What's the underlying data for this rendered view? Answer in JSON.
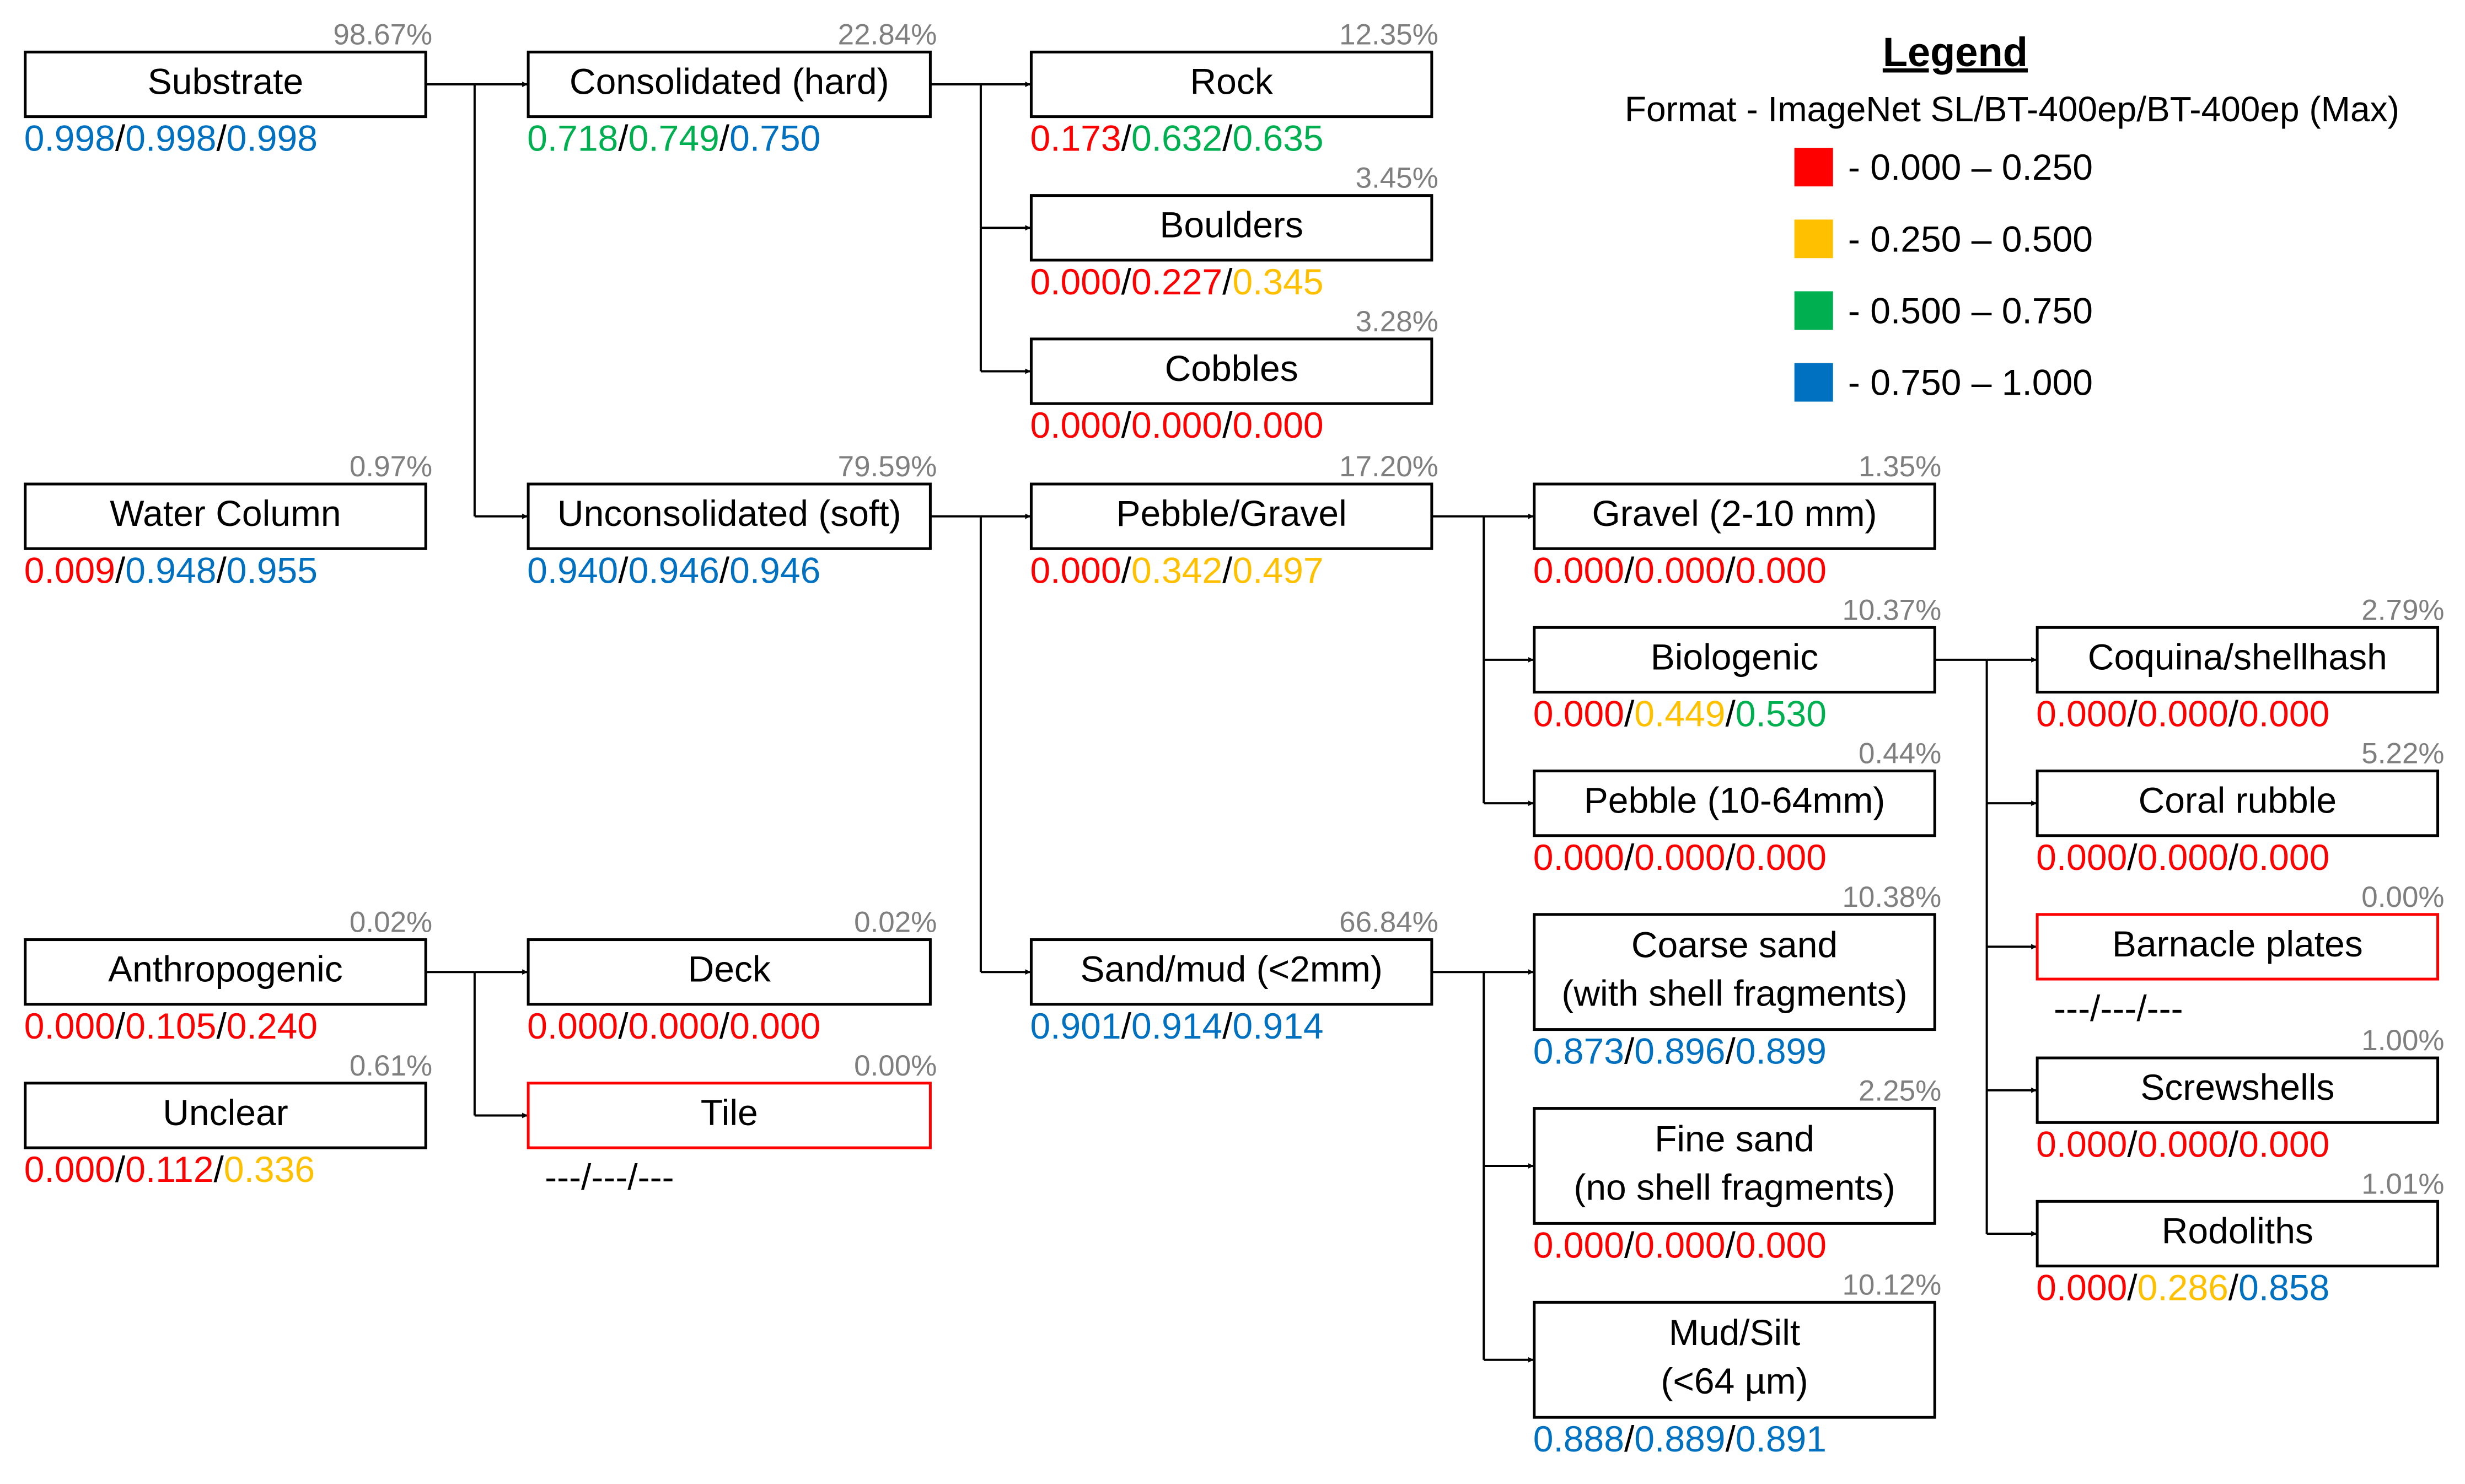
{
  "colors": {
    "red": "#ff0000",
    "yellow": "#ffc000",
    "green": "#00b050",
    "blue": "#0070c0",
    "percent_gray": "#7f7f7f"
  },
  "legend": {
    "title": "Legend",
    "format": "Format - ImageNet SL/BT-400ep/BT-400ep (Max)",
    "ranges": [
      {
        "color": "red",
        "label": "- 0.000 – 0.250"
      },
      {
        "color": "yellow",
        "label": "- 0.250 – 0.500"
      },
      {
        "color": "green",
        "label": "- 0.500 – 0.750"
      },
      {
        "color": "blue",
        "label": "- 0.750 – 1.000"
      }
    ]
  },
  "nodes": [
    {
      "id": "substrate",
      "lines": [
        "Substrate"
      ],
      "percent": "98.67%",
      "scores": [
        {
          "v": "0.998",
          "c": "blue"
        },
        {
          "v": "0.998",
          "c": "blue"
        },
        {
          "v": "0.998",
          "c": "blue"
        }
      ]
    },
    {
      "id": "consolidated",
      "lines": [
        "Consolidated (hard)"
      ],
      "percent": "22.84%",
      "scores": [
        {
          "v": "0.718",
          "c": "green"
        },
        {
          "v": "0.749",
          "c": "green"
        },
        {
          "v": "0.750",
          "c": "blue"
        }
      ]
    },
    {
      "id": "rock",
      "lines": [
        "Rock"
      ],
      "percent": "12.35%",
      "scores": [
        {
          "v": "0.173",
          "c": "red"
        },
        {
          "v": "0.632",
          "c": "green"
        },
        {
          "v": "0.635",
          "c": "green"
        }
      ]
    },
    {
      "id": "boulders",
      "lines": [
        "Boulders"
      ],
      "percent": "3.45%",
      "scores": [
        {
          "v": "0.000",
          "c": "red"
        },
        {
          "v": "0.227",
          "c": "red"
        },
        {
          "v": "0.345",
          "c": "yellow"
        }
      ]
    },
    {
      "id": "cobbles",
      "lines": [
        "Cobbles"
      ],
      "percent": "3.28%",
      "scores": [
        {
          "v": "0.000",
          "c": "red"
        },
        {
          "v": "0.000",
          "c": "red"
        },
        {
          "v": "0.000",
          "c": "red"
        }
      ]
    },
    {
      "id": "water_column",
      "lines": [
        "Water Column"
      ],
      "percent": "0.97%",
      "scores": [
        {
          "v": "0.009",
          "c": "red"
        },
        {
          "v": "0.948",
          "c": "blue"
        },
        {
          "v": "0.955",
          "c": "blue"
        }
      ]
    },
    {
      "id": "unconsolidated",
      "lines": [
        "Unconsolidated (soft)"
      ],
      "percent": "79.59%",
      "scores": [
        {
          "v": "0.940",
          "c": "blue"
        },
        {
          "v": "0.946",
          "c": "blue"
        },
        {
          "v": "0.946",
          "c": "blue"
        }
      ]
    },
    {
      "id": "pebble_gravel",
      "lines": [
        "Pebble/Gravel"
      ],
      "percent": "17.20%",
      "scores": [
        {
          "v": "0.000",
          "c": "red"
        },
        {
          "v": "0.342",
          "c": "yellow"
        },
        {
          "v": "0.497",
          "c": "yellow"
        }
      ]
    },
    {
      "id": "gravel",
      "lines": [
        "Gravel (2-10 mm)"
      ],
      "percent": "1.35%",
      "scores": [
        {
          "v": "0.000",
          "c": "red"
        },
        {
          "v": "0.000",
          "c": "red"
        },
        {
          "v": "0.000",
          "c": "red"
        }
      ]
    },
    {
      "id": "biologenic",
      "lines": [
        "Biologenic"
      ],
      "percent": "10.37%",
      "scores": [
        {
          "v": "0.000",
          "c": "red"
        },
        {
          "v": "0.449",
          "c": "yellow"
        },
        {
          "v": "0.530",
          "c": "green"
        }
      ]
    },
    {
      "id": "pebble",
      "lines": [
        "Pebble (10-64mm)"
      ],
      "percent": "0.44%",
      "scores": [
        {
          "v": "0.000",
          "c": "red"
        },
        {
          "v": "0.000",
          "c": "red"
        },
        {
          "v": "0.000",
          "c": "red"
        }
      ]
    },
    {
      "id": "coquina",
      "lines": [
        "Coquina/shellhash"
      ],
      "percent": "2.79%",
      "scores": [
        {
          "v": "0.000",
          "c": "red"
        },
        {
          "v": "0.000",
          "c": "red"
        },
        {
          "v": "0.000",
          "c": "red"
        }
      ]
    },
    {
      "id": "coral_rubble",
      "lines": [
        "Coral rubble"
      ],
      "percent": "5.22%",
      "scores": [
        {
          "v": "0.000",
          "c": "red"
        },
        {
          "v": "0.000",
          "c": "red"
        },
        {
          "v": "0.000",
          "c": "red"
        }
      ]
    },
    {
      "id": "barnacle",
      "lines": [
        "Barnacle plates"
      ],
      "percent": "0.00%",
      "highlight": true,
      "scores_text": "---/---/---"
    },
    {
      "id": "screwshells",
      "lines": [
        "Screwshells"
      ],
      "percent": "1.00%",
      "scores": [
        {
          "v": "0.000",
          "c": "red"
        },
        {
          "v": "0.000",
          "c": "red"
        },
        {
          "v": "0.000",
          "c": "red"
        }
      ]
    },
    {
      "id": "rodoliths",
      "lines": [
        "Rodoliths"
      ],
      "percent": "1.01%",
      "scores": [
        {
          "v": "0.000",
          "c": "red"
        },
        {
          "v": "0.286",
          "c": "yellow"
        },
        {
          "v": "0.858",
          "c": "blue"
        }
      ]
    },
    {
      "id": "anthropogenic",
      "lines": [
        "Anthropogenic"
      ],
      "percent": "0.02%",
      "scores": [
        {
          "v": "0.000",
          "c": "red"
        },
        {
          "v": "0.105",
          "c": "red"
        },
        {
          "v": "0.240",
          "c": "red"
        }
      ]
    },
    {
      "id": "deck",
      "lines": [
        "Deck"
      ],
      "percent": "0.02%",
      "scores": [
        {
          "v": "0.000",
          "c": "red"
        },
        {
          "v": "0.000",
          "c": "red"
        },
        {
          "v": "0.000",
          "c": "red"
        }
      ]
    },
    {
      "id": "unclear",
      "lines": [
        "Unclear"
      ],
      "percent": "0.61%",
      "scores": [
        {
          "v": "0.000",
          "c": "red"
        },
        {
          "v": "0.112",
          "c": "red"
        },
        {
          "v": "0.336",
          "c": "yellow"
        }
      ]
    },
    {
      "id": "tile",
      "lines": [
        "Tile"
      ],
      "percent": "0.00%",
      "highlight": true,
      "scores_text": "---/---/---"
    },
    {
      "id": "sand_mud",
      "lines": [
        "Sand/mud (<2mm)"
      ],
      "percent": "66.84%",
      "scores": [
        {
          "v": "0.901",
          "c": "blue"
        },
        {
          "v": "0.914",
          "c": "blue"
        },
        {
          "v": "0.914",
          "c": "blue"
        }
      ]
    },
    {
      "id": "coarse_sand",
      "lines": [
        "Coarse sand",
        "(with shell fragments)"
      ],
      "percent": "10.38%",
      "scores": [
        {
          "v": "0.873",
          "c": "blue"
        },
        {
          "v": "0.896",
          "c": "blue"
        },
        {
          "v": "0.899",
          "c": "blue"
        }
      ]
    },
    {
      "id": "fine_sand",
      "lines": [
        "Fine sand",
        "(no shell fragments)"
      ],
      "percent": "2.25%",
      "scores": [
        {
          "v": "0.000",
          "c": "red"
        },
        {
          "v": "0.000",
          "c": "red"
        },
        {
          "v": "0.000",
          "c": "red"
        }
      ]
    },
    {
      "id": "mud_silt",
      "lines": [
        "Mud/Silt",
        "(<64 µm)"
      ],
      "percent": "10.12%",
      "scores": [
        {
          "v": "0.888",
          "c": "blue"
        },
        {
          "v": "0.889",
          "c": "blue"
        },
        {
          "v": "0.891",
          "c": "blue"
        }
      ]
    }
  ],
  "edges": [
    {
      "from": "substrate",
      "to": [
        "consolidated",
        "unconsolidated"
      ]
    },
    {
      "from": "consolidated",
      "to": [
        "rock",
        "boulders",
        "cobbles"
      ]
    },
    {
      "from": "unconsolidated",
      "to": [
        "pebble_gravel",
        "sand_mud"
      ]
    },
    {
      "from": "pebble_gravel",
      "to": [
        "gravel",
        "biologenic",
        "pebble"
      ]
    },
    {
      "from": "biologenic",
      "to": [
        "coquina",
        "coral_rubble",
        "barnacle",
        "screwshells",
        "rodoliths"
      ]
    },
    {
      "from": "sand_mud",
      "to": [
        "coarse_sand",
        "fine_sand",
        "mud_silt"
      ]
    },
    {
      "from": "anthropogenic",
      "to": [
        "deck",
        "tile"
      ]
    }
  ]
}
